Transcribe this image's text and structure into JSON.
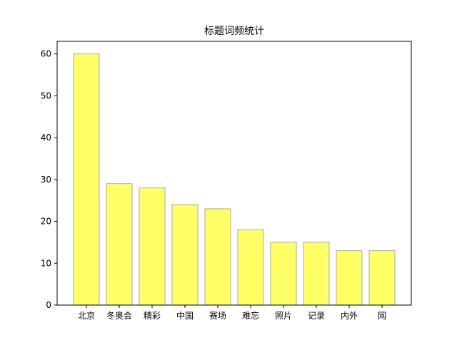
{
  "chart_data": {
    "type": "bar",
    "title": "标题词频统计",
    "xlabel": "",
    "ylabel": "",
    "categories": [
      "北京",
      "冬奥会",
      "精彩",
      "中国",
      "赛场",
      "难忘",
      "照片",
      "记录",
      "内外",
      "网"
    ],
    "values": [
      60,
      29,
      28,
      24,
      23,
      18,
      15,
      15,
      13,
      13
    ],
    "ylim": [
      0,
      63
    ],
    "yticks": [
      0,
      10,
      20,
      30,
      40,
      50,
      60
    ],
    "grid": false,
    "bar_color": "#ffff66",
    "bar_edge_color": "#aaaaaa"
  }
}
